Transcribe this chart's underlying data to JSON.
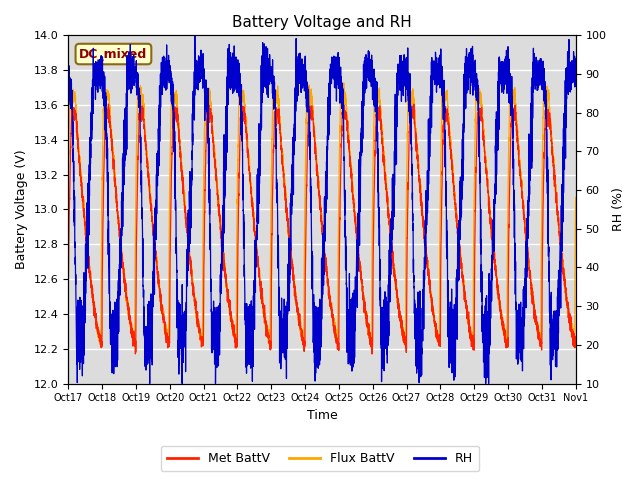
{
  "title": "Battery Voltage and RH",
  "xlabel": "Time",
  "ylabel_left": "Battery Voltage (V)",
  "ylabel_right": "RH (%)",
  "ylim_left": [
    12.0,
    14.0
  ],
  "ylim_right": [
    10,
    100
  ],
  "yticks_left": [
    12.0,
    12.2,
    12.4,
    12.6,
    12.8,
    13.0,
    13.2,
    13.4,
    13.6,
    13.8,
    14.0
  ],
  "yticks_right": [
    10,
    20,
    30,
    40,
    50,
    60,
    70,
    80,
    90,
    100
  ],
  "xtick_labels": [
    "Oct 17",
    "Oct 18",
    "Oct 19",
    "Oct 20",
    "Oct 21",
    "Oct 22",
    "Oct 23",
    "Oct 24",
    "Oct 25",
    "Oct 26",
    "Oct 27",
    "Oct 28",
    "Oct 29",
    "Oct 30",
    "Oct 31",
    "Nov 1"
  ],
  "annotation_text": "DC_mixed",
  "annotation_color": "#8B0000",
  "annotation_bg": "#FFFFCC",
  "annotation_border": "#8B6914",
  "met_color": "#FF2200",
  "flux_color": "#FFA500",
  "rh_color": "#0000CD",
  "legend_labels": [
    "Met BattV",
    "Flux BattV",
    "RH"
  ],
  "plot_bg": "#DCDCDC",
  "grid_color": "#FFFFFF",
  "seed": 42,
  "n_days": 15,
  "n_points_per_day": 300
}
